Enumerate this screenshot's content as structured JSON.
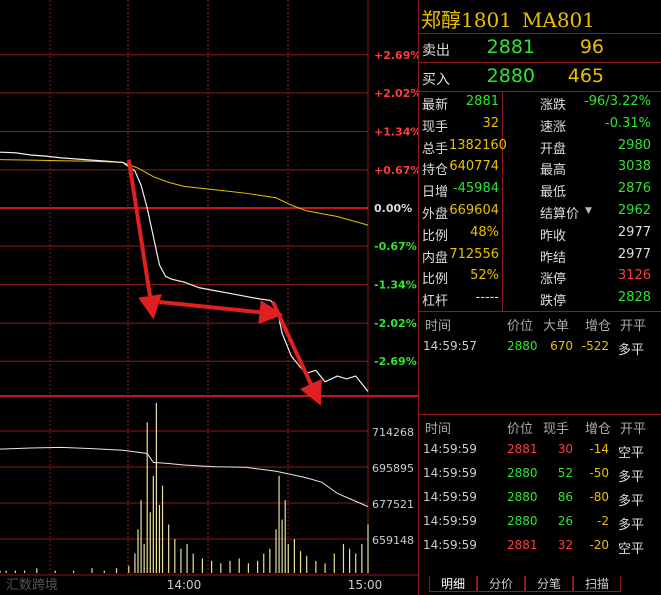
{
  "title": {
    "contract": "郑醇1801",
    "code": "MA801"
  },
  "quote": {
    "ask": {
      "label": "卖出",
      "price": "2881",
      "volume": "96"
    },
    "bid": {
      "label": "买入",
      "price": "2880",
      "volume": "465"
    }
  },
  "stats_left": [
    {
      "label": "最新",
      "value": "2881"
    },
    {
      "label": "现手",
      "value": "32"
    },
    {
      "label": "总手",
      "value": "1382160"
    },
    {
      "label": "持仓",
      "value": "640774"
    },
    {
      "label": "日增",
      "value": "-45984"
    },
    {
      "label": "外盘",
      "value": "669604"
    },
    {
      "label": "比例",
      "value": "48%"
    },
    {
      "label": "内盘",
      "value": "712556"
    },
    {
      "label": "比例",
      "value": "52%"
    },
    {
      "label": "杠杆",
      "value": "-----"
    }
  ],
  "stats_right": [
    {
      "label": "涨跌",
      "value": "-96/3.22%"
    },
    {
      "label": "速涨",
      "value": "-0.31%"
    },
    {
      "label": "开盘",
      "value": "2980"
    },
    {
      "label": "最高",
      "value": "3038"
    },
    {
      "label": "最低",
      "value": "2876"
    },
    {
      "label": "结算价",
      "value": "2962"
    },
    {
      "label": "昨收",
      "value": "2977"
    },
    {
      "label": "昨结",
      "value": "2977"
    },
    {
      "label": "涨停",
      "value": "3126"
    },
    {
      "label": "跌停",
      "value": "2828"
    }
  ],
  "big_orders": {
    "headers": [
      "时间",
      "价位",
      "大单",
      "增仓",
      "开平"
    ],
    "rows": [
      {
        "time": "14:59:57",
        "price": "2880",
        "qty": "670",
        "oi": "-522",
        "type": "多平"
      }
    ]
  },
  "ticks": {
    "headers": [
      "时间",
      "价位",
      "现手",
      "增仓",
      "开平"
    ],
    "rows": [
      {
        "time": "14:59:59",
        "price": "2881",
        "qty": "30",
        "oi": "-14",
        "type": "空平"
      },
      {
        "time": "14:59:59",
        "price": "2880",
        "qty": "52",
        "oi": "-50",
        "type": "多平"
      },
      {
        "time": "14:59:59",
        "price": "2880",
        "qty": "86",
        "oi": "-80",
        "type": "多平"
      },
      {
        "time": "14:59:59",
        "price": "2880",
        "qty": "26",
        "oi": "-2",
        "type": "多平"
      },
      {
        "time": "14:59:59",
        "price": "2881",
        "qty": "32",
        "oi": "-20",
        "type": "空平"
      }
    ]
  },
  "tabs": [
    "明细",
    "分价",
    "分笔",
    "扫描"
  ],
  "watermark": "汇数跨境",
  "colors": {
    "up": "#ff3b3b",
    "down": "#2ee62e",
    "grid": "#8b1a1a",
    "yellow": "#e8c100"
  },
  "chart_data": {
    "type": "line",
    "pct_ticks": [
      "+2.69%",
      "+2.02%",
      "+1.34%",
      "+0.67%",
      "0.00%",
      "-0.67%",
      "-1.34%",
      "-2.02%",
      "-2.69%"
    ],
    "volume_ticks": [
      "714268",
      "695895",
      "677521",
      "659148"
    ],
    "x_ticks": [
      "14:00",
      "15:00"
    ],
    "x_range_minutes": [
      0,
      120
    ],
    "pct_range": [
      -3.3,
      3.3
    ],
    "oi_range": [
      640000,
      720000
    ],
    "price_pct": [
      [
        0,
        0.98
      ],
      [
        5,
        0.97
      ],
      [
        10,
        0.93
      ],
      [
        15,
        0.91
      ],
      [
        20,
        0.88
      ],
      [
        25,
        0.86
      ],
      [
        30,
        0.84
      ],
      [
        35,
        0.82
      ],
      [
        40,
        0.8
      ],
      [
        44,
        0.65
      ],
      [
        46,
        0.4
      ],
      [
        48,
        0.0
      ],
      [
        50,
        -0.5
      ],
      [
        52,
        -1.0
      ],
      [
        54,
        -1.2
      ],
      [
        56,
        -1.25
      ],
      [
        60,
        -1.3
      ],
      [
        65,
        -1.4
      ],
      [
        70,
        -1.45
      ],
      [
        75,
        -1.5
      ],
      [
        80,
        -1.55
      ],
      [
        85,
        -1.6
      ],
      [
        88,
        -1.62
      ],
      [
        90,
        -1.7
      ],
      [
        92,
        -2.2
      ],
      [
        95,
        -2.6
      ],
      [
        98,
        -2.8
      ],
      [
        100,
        -2.9
      ],
      [
        103,
        -2.85
      ],
      [
        106,
        -3.05
      ],
      [
        110,
        -2.95
      ],
      [
        113,
        -3.0
      ],
      [
        116,
        -2.95
      ],
      [
        120,
        -3.22
      ]
    ],
    "avg_pct": [
      [
        0,
        0.85
      ],
      [
        10,
        0.84
      ],
      [
        20,
        0.83
      ],
      [
        30,
        0.82
      ],
      [
        40,
        0.8
      ],
      [
        45,
        0.7
      ],
      [
        50,
        0.55
      ],
      [
        55,
        0.45
      ],
      [
        60,
        0.38
      ],
      [
        70,
        0.32
      ],
      [
        80,
        0.26
      ],
      [
        90,
        0.18
      ],
      [
        95,
        0.05
      ],
      [
        100,
        -0.05
      ],
      [
        110,
        -0.15
      ],
      [
        120,
        -0.3
      ]
    ],
    "oi_line": [
      [
        0,
        696000
      ],
      [
        10,
        696500
      ],
      [
        20,
        696800
      ],
      [
        30,
        696200
      ],
      [
        40,
        695500
      ],
      [
        48,
        694000
      ],
      [
        50,
        690000
      ],
      [
        55,
        689500
      ],
      [
        60,
        688800
      ],
      [
        70,
        688000
      ],
      [
        80,
        687800
      ],
      [
        90,
        686000
      ],
      [
        95,
        684500
      ],
      [
        100,
        683000
      ],
      [
        105,
        681000
      ],
      [
        110,
        676000
      ],
      [
        115,
        673000
      ],
      [
        120,
        670000
      ]
    ],
    "volume_bars": [
      [
        0,
        1
      ],
      [
        2,
        1
      ],
      [
        5,
        1
      ],
      [
        8,
        1
      ],
      [
        12,
        2
      ],
      [
        18,
        1
      ],
      [
        24,
        1
      ],
      [
        30,
        2
      ],
      [
        34,
        1
      ],
      [
        38,
        2
      ],
      [
        42,
        3
      ],
      [
        44,
        8
      ],
      [
        45,
        18
      ],
      [
        46,
        30
      ],
      [
        47,
        12
      ],
      [
        48,
        62
      ],
      [
        49,
        25
      ],
      [
        50,
        40
      ],
      [
        51,
        70
      ],
      [
        52,
        28
      ],
      [
        53,
        36
      ],
      [
        55,
        20
      ],
      [
        57,
        14
      ],
      [
        59,
        10
      ],
      [
        61,
        12
      ],
      [
        63,
        8
      ],
      [
        66,
        6
      ],
      [
        69,
        5
      ],
      [
        72,
        4
      ],
      [
        75,
        5
      ],
      [
        78,
        6
      ],
      [
        81,
        4
      ],
      [
        84,
        5
      ],
      [
        86,
        8
      ],
      [
        88,
        10
      ],
      [
        90,
        18
      ],
      [
        91,
        40
      ],
      [
        92,
        22
      ],
      [
        93,
        30
      ],
      [
        94,
        12
      ],
      [
        96,
        14
      ],
      [
        98,
        9
      ],
      [
        100,
        7
      ],
      [
        103,
        5
      ],
      [
        106,
        4
      ],
      [
        109,
        8
      ],
      [
        112,
        12
      ],
      [
        114,
        10
      ],
      [
        116,
        8
      ],
      [
        118,
        12
      ],
      [
        120,
        20
      ]
    ]
  }
}
